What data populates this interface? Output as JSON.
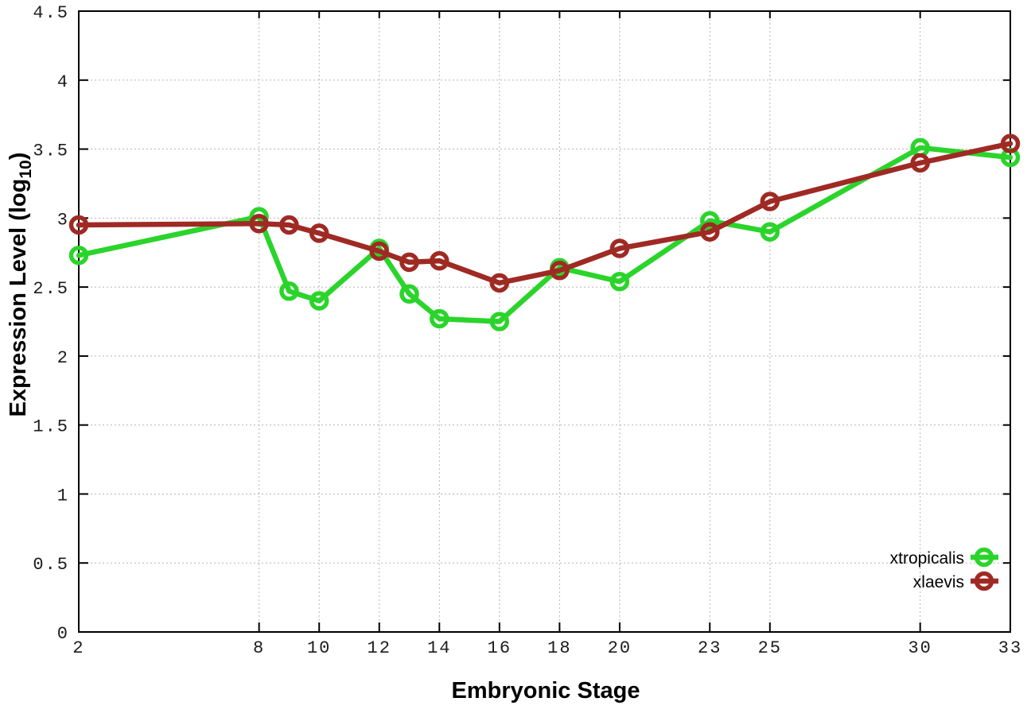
{
  "chart_data": {
    "type": "line",
    "title": "",
    "xlabel": "Embryonic Stage",
    "ylabel": "Expression Level (log10)",
    "ylabel_main": "Expression Level (log",
    "ylabel_sub": "10",
    "ylabel_close": ")",
    "x": [
      2,
      8,
      9,
      10,
      12,
      13,
      14,
      16,
      18,
      20,
      23,
      25,
      30,
      33
    ],
    "xticks": [
      2,
      8,
      10,
      12,
      14,
      16,
      18,
      20,
      23,
      25,
      30,
      33
    ],
    "yticks": [
      0,
      0.5,
      1,
      1.5,
      2,
      2.5,
      3,
      3.5,
      4,
      4.5
    ],
    "xlim": [
      2,
      33
    ],
    "ylim": [
      0,
      4.5
    ],
    "grid": true,
    "grid_color": "#b5b5b5",
    "border_color": "#000000",
    "background_color": "#ffffff",
    "legend_position": "bottom-right",
    "series": [
      {
        "name": "xtropicalis",
        "color": "#2bd42b",
        "values": [
          2.73,
          3.01,
          2.47,
          2.4,
          2.78,
          2.45,
          2.27,
          2.25,
          2.64,
          2.54,
          2.98,
          2.9,
          3.51,
          3.44
        ]
      },
      {
        "name": "xlaevis",
        "color": "#9f2a24",
        "values": [
          2.95,
          2.96,
          2.95,
          2.89,
          2.76,
          2.68,
          2.69,
          2.53,
          2.62,
          2.78,
          2.9,
          3.12,
          3.4,
          3.54
        ]
      }
    ]
  }
}
